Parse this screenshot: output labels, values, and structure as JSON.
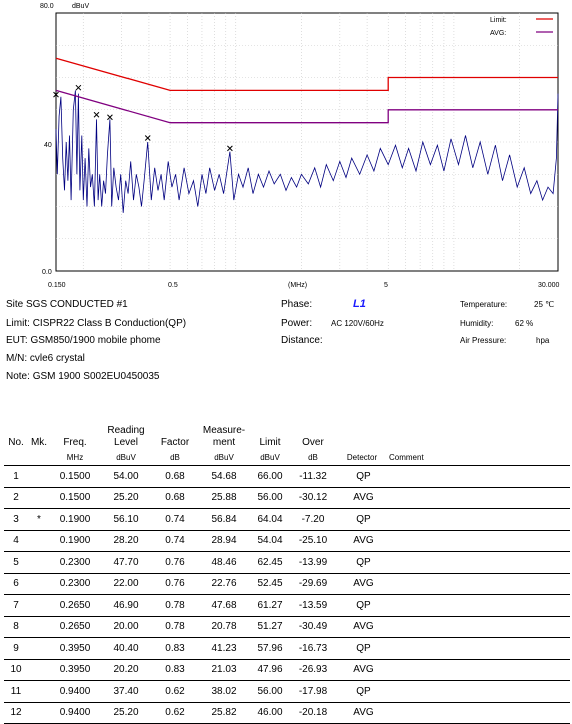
{
  "chart_data": {
    "type": "line",
    "xscale": "log",
    "xlim": [
      0.15,
      30
    ],
    "ylim": [
      0,
      80
    ],
    "ylabel": "dBuV",
    "xlabel": "(MHz)",
    "yticks": [
      "80.0",
      "40",
      "0.0"
    ],
    "xticks": [
      "0.150",
      "0.5",
      "5",
      "30.000"
    ],
    "legend": [
      {
        "name": "Limit:",
        "color": "#e00000"
      },
      {
        "name": "AVG:",
        "color": "#800080"
      }
    ],
    "series": [
      {
        "name": "Limit",
        "color": "#e00000",
        "points": [
          [
            0.15,
            66
          ],
          [
            0.5,
            56
          ],
          [
            5,
            56
          ],
          [
            5,
            60
          ],
          [
            30,
            60
          ]
        ]
      },
      {
        "name": "AVG",
        "color": "#800080",
        "points": [
          [
            0.15,
            56
          ],
          [
            0.5,
            46
          ],
          [
            5,
            46
          ],
          [
            5,
            50
          ],
          [
            30,
            50
          ]
        ]
      }
    ],
    "trace": {
      "color": "#000080",
      "points": [
        [
          0.15,
          44
        ],
        [
          0.152,
          30
        ],
        [
          0.155,
          48
        ],
        [
          0.158,
          54
        ],
        [
          0.161,
          35
        ],
        [
          0.164,
          25
        ],
        [
          0.167,
          40
        ],
        [
          0.17,
          28
        ],
        [
          0.173,
          42
        ],
        [
          0.176,
          22
        ],
        [
          0.18,
          50
        ],
        [
          0.184,
          56
        ],
        [
          0.187,
          30
        ],
        [
          0.19,
          55
        ],
        [
          0.193,
          25
        ],
        [
          0.197,
          42
        ],
        [
          0.2,
          22
        ],
        [
          0.204,
          35
        ],
        [
          0.208,
          20
        ],
        [
          0.212,
          38
        ],
        [
          0.216,
          26
        ],
        [
          0.22,
          30
        ],
        [
          0.225,
          20
        ],
        [
          0.23,
          47
        ],
        [
          0.234,
          22
        ],
        [
          0.238,
          30
        ],
        [
          0.243,
          20
        ],
        [
          0.248,
          28
        ],
        [
          0.253,
          24
        ],
        [
          0.258,
          36
        ],
        [
          0.265,
          47
        ],
        [
          0.27,
          20
        ],
        [
          0.276,
          32
        ],
        [
          0.283,
          26
        ],
        [
          0.29,
          22
        ],
        [
          0.297,
          30
        ],
        [
          0.305,
          18
        ],
        [
          0.313,
          28
        ],
        [
          0.321,
          24
        ],
        [
          0.33,
          34
        ],
        [
          0.34,
          22
        ],
        [
          0.35,
          30
        ],
        [
          0.36,
          26
        ],
        [
          0.37,
          20
        ],
        [
          0.38,
          28
        ],
        [
          0.395,
          40
        ],
        [
          0.41,
          22
        ],
        [
          0.425,
          32
        ],
        [
          0.44,
          25
        ],
        [
          0.455,
          30
        ],
        [
          0.47,
          22
        ],
        [
          0.49,
          34
        ],
        [
          0.51,
          26
        ],
        [
          0.53,
          30
        ],
        [
          0.55,
          22
        ],
        [
          0.58,
          32
        ],
        [
          0.61,
          24
        ],
        [
          0.64,
          28
        ],
        [
          0.67,
          20
        ],
        [
          0.7,
          30
        ],
        [
          0.73,
          24
        ],
        [
          0.76,
          32
        ],
        [
          0.8,
          25
        ],
        [
          0.84,
          30
        ],
        [
          0.88,
          24
        ],
        [
          0.94,
          37
        ],
        [
          0.98,
          22
        ],
        [
          1.03,
          30
        ],
        [
          1.08,
          26
        ],
        [
          1.14,
          32
        ],
        [
          1.2,
          24
        ],
        [
          1.27,
          30
        ],
        [
          1.34,
          26
        ],
        [
          1.42,
          31
        ],
        [
          1.5,
          27
        ],
        [
          1.6,
          30
        ],
        [
          1.7,
          25
        ],
        [
          1.8,
          29
        ],
        [
          1.9,
          26
        ],
        [
          2.0,
          30
        ],
        [
          2.15,
          27
        ],
        [
          2.3,
          32
        ],
        [
          2.45,
          26
        ],
        [
          2.6,
          33
        ],
        [
          2.8,
          28
        ],
        [
          3.0,
          34
        ],
        [
          3.2,
          29
        ],
        [
          3.4,
          35
        ],
        [
          3.7,
          30
        ],
        [
          4.0,
          36
        ],
        [
          4.3,
          31
        ],
        [
          4.6,
          38
        ],
        [
          5.0,
          33
        ],
        [
          5.4,
          39
        ],
        [
          5.8,
          32
        ],
        [
          6.2,
          38
        ],
        [
          6.7,
          31
        ],
        [
          7.2,
          40
        ],
        [
          7.8,
          33
        ],
        [
          8.4,
          39
        ],
        [
          9.0,
          31
        ],
        [
          9.7,
          41
        ],
        [
          10.5,
          33
        ],
        [
          11.3,
          42
        ],
        [
          12.2,
          32
        ],
        [
          13.2,
          40
        ],
        [
          14.3,
          30
        ],
        [
          15.5,
          39
        ],
        [
          16.7,
          28
        ],
        [
          18.0,
          36
        ],
        [
          19.5,
          26
        ],
        [
          21.0,
          32
        ],
        [
          22.5,
          24
        ],
        [
          24.0,
          28
        ],
        [
          25.5,
          22
        ],
        [
          27.0,
          26
        ],
        [
          28.5,
          24
        ],
        [
          29.5,
          35
        ],
        [
          30.0,
          55
        ]
      ]
    },
    "markers": [
      {
        "x": 0.15,
        "y": 54.68
      },
      {
        "x": 0.19,
        "y": 56.84
      },
      {
        "x": 0.23,
        "y": 48.46
      },
      {
        "x": 0.265,
        "y": 47.68
      },
      {
        "x": 0.395,
        "y": 41.23
      },
      {
        "x": 0.94,
        "y": 38.02
      }
    ]
  },
  "header": {
    "site_label": "Site",
    "site": "SGS CONDUCTED #1",
    "limit_label": "Limit:",
    "limit": "CISPR22 Class B Conduction(QP)",
    "eut_label": "EUT:",
    "eut": "GSM850/1900 mobile phome",
    "mn_label": "M/N:",
    "mn": "cvle6 crystal",
    "note_label": "Note:",
    "note": "GSM 1900 S002EU0450035",
    "phase_label": "Phase:",
    "phase": "L1",
    "power_label": "Power:",
    "power": "AC 120V/60Hz",
    "distance_label": "Distance:",
    "temp_label": "Temperature:",
    "temp": "25 ℃",
    "humidity_label": "Humidity:",
    "humidity": "62 %",
    "pressure_label": "Air Pressure:",
    "pressure": "hpa"
  },
  "table": {
    "headers": {
      "no": "No.",
      "mk": "Mk.",
      "freq": "Freq.",
      "reading": "Reading Level",
      "factor": "Factor",
      "measurement": "Measure- ment",
      "limit": "Limit",
      "over": "Over",
      "detector": "",
      "comment": ""
    },
    "units": [
      "",
      "",
      "MHz",
      "dBuV",
      "dB",
      "dBuV",
      "dBuV",
      "dB",
      "Detector",
      "Comment"
    ],
    "rows": [
      [
        "1",
        "",
        "0.1500",
        "54.00",
        "0.68",
        "54.68",
        "66.00",
        "-11.32",
        "QP",
        ""
      ],
      [
        "2",
        "",
        "0.1500",
        "25.20",
        "0.68",
        "25.88",
        "56.00",
        "-30.12",
        "AVG",
        ""
      ],
      [
        "3",
        "*",
        "0.1900",
        "56.10",
        "0.74",
        "56.84",
        "64.04",
        "-7.20",
        "QP",
        ""
      ],
      [
        "4",
        "",
        "0.1900",
        "28.20",
        "0.74",
        "28.94",
        "54.04",
        "-25.10",
        "AVG",
        ""
      ],
      [
        "5",
        "",
        "0.2300",
        "47.70",
        "0.76",
        "48.46",
        "62.45",
        "-13.99",
        "QP",
        ""
      ],
      [
        "6",
        "",
        "0.2300",
        "22.00",
        "0.76",
        "22.76",
        "52.45",
        "-29.69",
        "AVG",
        ""
      ],
      [
        "7",
        "",
        "0.2650",
        "46.90",
        "0.78",
        "47.68",
        "61.27",
        "-13.59",
        "QP",
        ""
      ],
      [
        "8",
        "",
        "0.2650",
        "20.00",
        "0.78",
        "20.78",
        "51.27",
        "-30.49",
        "AVG",
        ""
      ],
      [
        "9",
        "",
        "0.3950",
        "40.40",
        "0.83",
        "41.23",
        "57.96",
        "-16.73",
        "QP",
        ""
      ],
      [
        "10",
        "",
        "0.3950",
        "20.20",
        "0.83",
        "21.03",
        "47.96",
        "-26.93",
        "AVG",
        ""
      ],
      [
        "11",
        "",
        "0.9400",
        "37.40",
        "0.62",
        "38.02",
        "56.00",
        "-17.98",
        "QP",
        ""
      ],
      [
        "12",
        "",
        "0.9400",
        "25.20",
        "0.62",
        "25.82",
        "46.00",
        "-20.18",
        "AVG",
        ""
      ]
    ]
  }
}
